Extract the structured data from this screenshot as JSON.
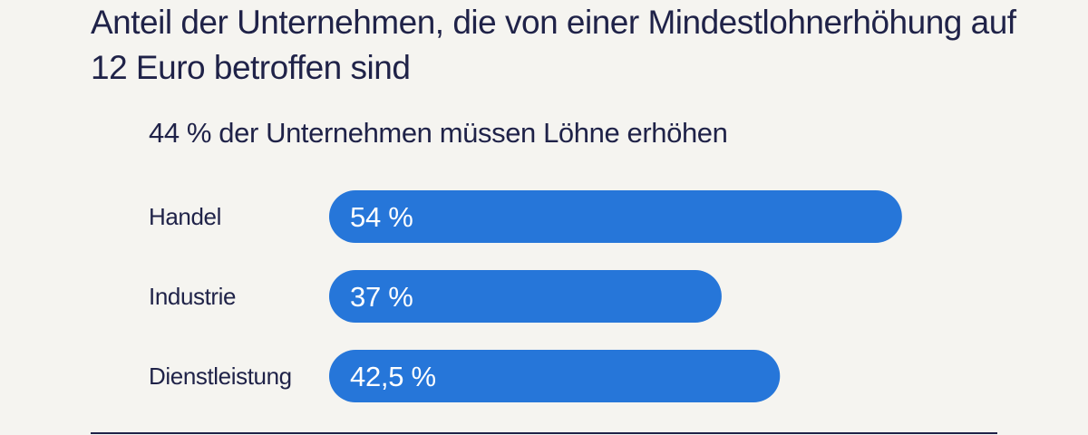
{
  "chart_data": {
    "type": "bar",
    "orientation": "horizontal",
    "title": "Anteil der Unternehmen, die von einer Mindestlohnerhöhung auf 12 Euro betroffen sind",
    "subtitle": "44 % der Unternehmen müssen Löhne erhöhen",
    "categories": [
      "Handel",
      "Industrie",
      "Dienstleistung"
    ],
    "values": [
      54,
      37,
      42.5
    ],
    "value_labels": [
      "54 %",
      "37 %",
      "42,5 %"
    ],
    "unit": "%",
    "xlim": [
      0,
      100
    ],
    "grid": false,
    "legend": "none",
    "bar_color": "#2676d9"
  }
}
